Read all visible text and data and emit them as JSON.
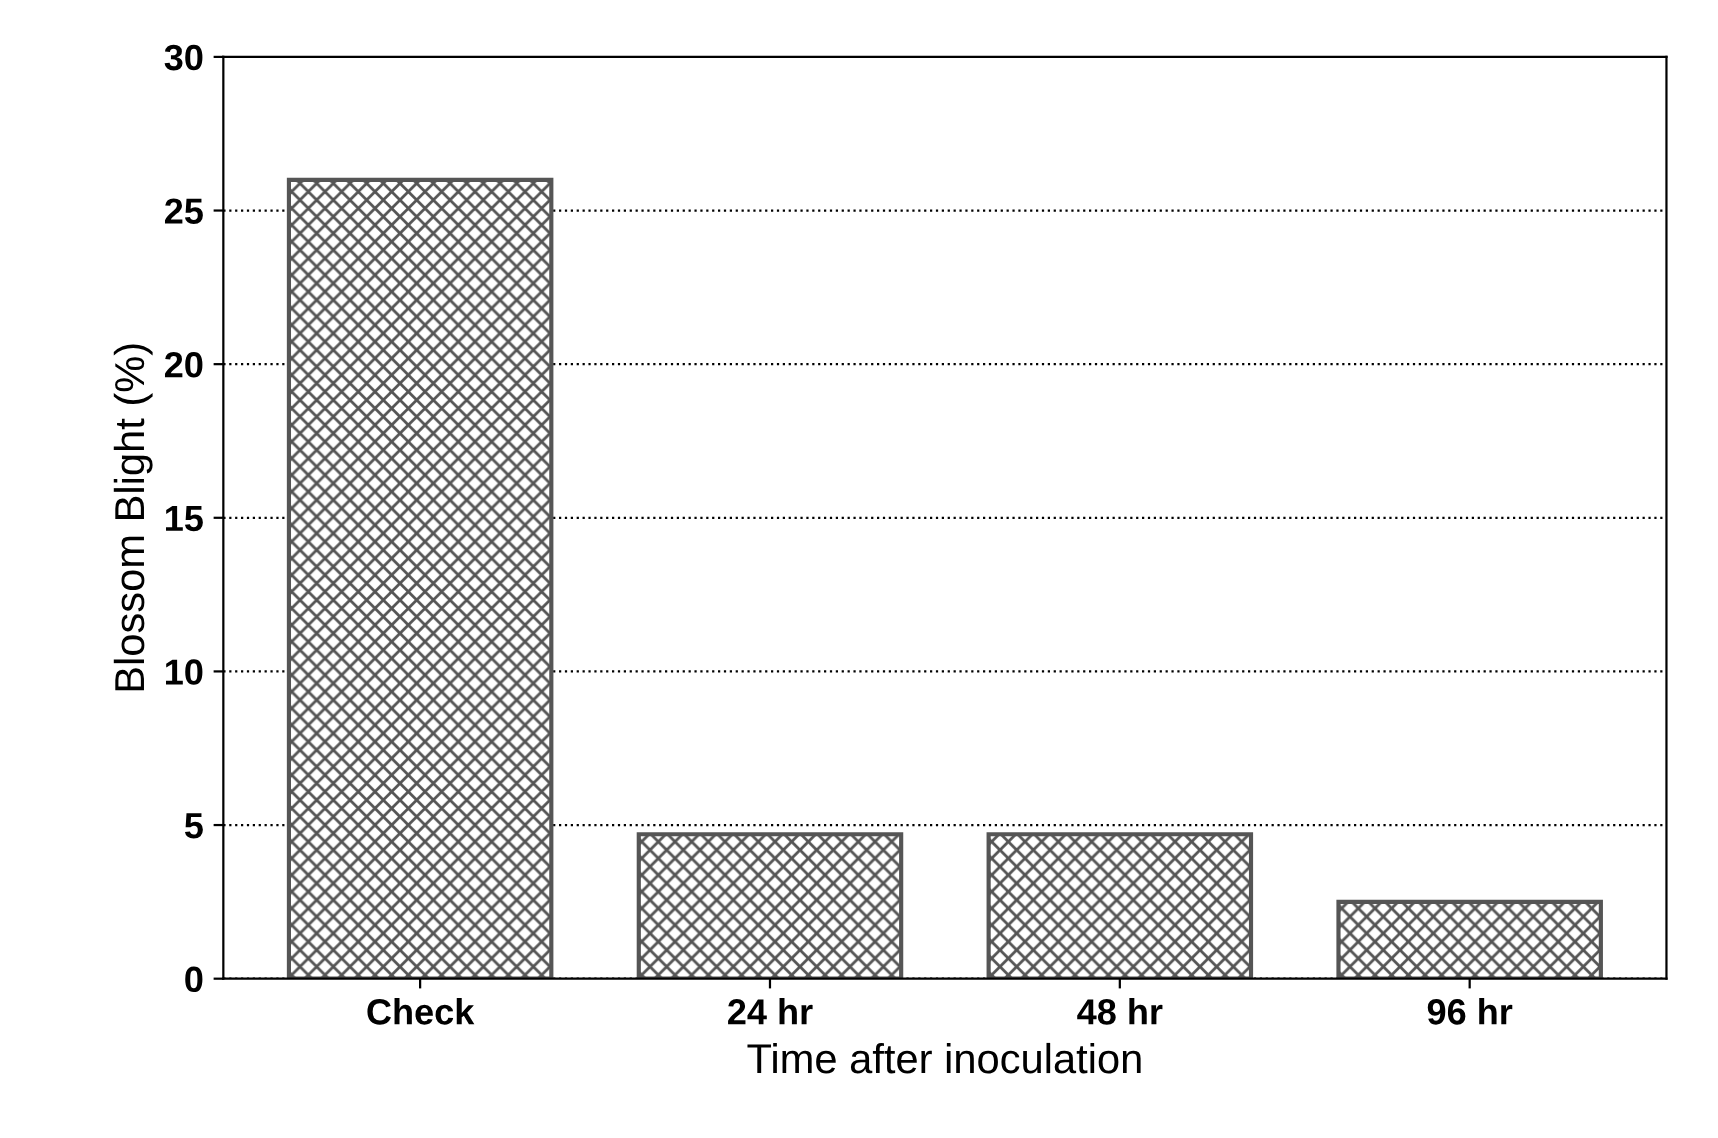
{
  "chart_data": {
    "type": "bar",
    "xlabel": "Time after inoculation",
    "ylabel": "Blossom Blight (%)",
    "categories": [
      "Check",
      "24 hr",
      "48 hr",
      "96 hr"
    ],
    "values": [
      26,
      4.7,
      4.7,
      2.5
    ],
    "color": "#555555",
    "ylim": [
      0,
      30
    ],
    "yticks": [
      0,
      5,
      10,
      15,
      20,
      25,
      30
    ],
    "grid": "y",
    "line_style": "dotted"
  }
}
